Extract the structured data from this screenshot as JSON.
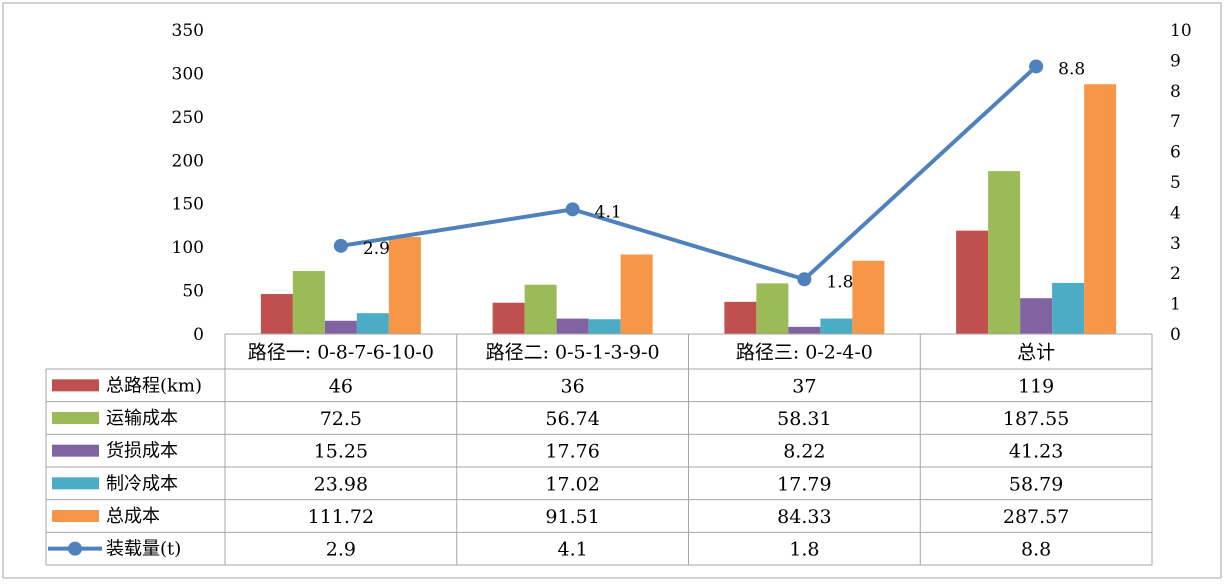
{
  "chart_data": {
    "type": "bar",
    "categories": [
      "路径一: 0-8-7-6-10-0",
      "路径二: 0-5-1-3-9-0",
      "路径三: 0-2-4-0",
      "总计"
    ],
    "series": [
      {
        "name": "总路程(km)",
        "values": [
          46,
          36,
          37,
          119
        ],
        "color": "#c0504d",
        "axis": "left",
        "kind": "bar"
      },
      {
        "name": "运输成本",
        "values": [
          72.5,
          56.74,
          58.31,
          187.55
        ],
        "color": "#9bbb59",
        "axis": "left",
        "kind": "bar"
      },
      {
        "name": "货损成本",
        "values": [
          15.25,
          17.76,
          8.22,
          41.23
        ],
        "color": "#8064a2",
        "axis": "left",
        "kind": "bar"
      },
      {
        "name": "制冷成本",
        "values": [
          23.98,
          17.02,
          17.79,
          58.79
        ],
        "color": "#4bacc6",
        "axis": "left",
        "kind": "bar"
      },
      {
        "name": "总成本",
        "values": [
          111.72,
          91.51,
          84.33,
          287.57
        ],
        "color": "#f79646",
        "axis": "left",
        "kind": "bar"
      },
      {
        "name": "装载量(t)",
        "values": [
          2.9,
          4.1,
          1.8,
          8.8
        ],
        "color": "#4f81bd",
        "axis": "right",
        "kind": "line"
      }
    ],
    "y_left": {
      "range": [
        0,
        350
      ],
      "ticks": [
        0,
        50,
        100,
        150,
        200,
        250,
        300,
        350
      ]
    },
    "y_right": {
      "range": [
        0,
        10
      ],
      "ticks": [
        0,
        1,
        2,
        3,
        4,
        5,
        6,
        7,
        8,
        9,
        10
      ]
    },
    "line_labels": [
      "2.9",
      "4.1",
      "1.8",
      "8.8"
    ],
    "data_table": {
      "rows": [
        {
          "label": "总路程(km)",
          "cells": [
            "46",
            "36",
            "37",
            "119"
          ]
        },
        {
          "label": "运输成本",
          "cells": [
            "72.5",
            "56.74",
            "58.31",
            "187.55"
          ]
        },
        {
          "label": "货损成本",
          "cells": [
            "15.25",
            "17.76",
            "8.22",
            "41.23"
          ]
        },
        {
          "label": "制冷成本",
          "cells": [
            "23.98",
            "17.02",
            "17.79",
            "58.79"
          ]
        },
        {
          "label": "总成本",
          "cells": [
            "111.72",
            "91.51",
            "84.33",
            "287.57"
          ]
        },
        {
          "label": "装载量(t)",
          "cells": [
            "2.9",
            "4.1",
            "1.8",
            "8.8"
          ]
        }
      ]
    },
    "grid": false,
    "legend": "data-table"
  }
}
